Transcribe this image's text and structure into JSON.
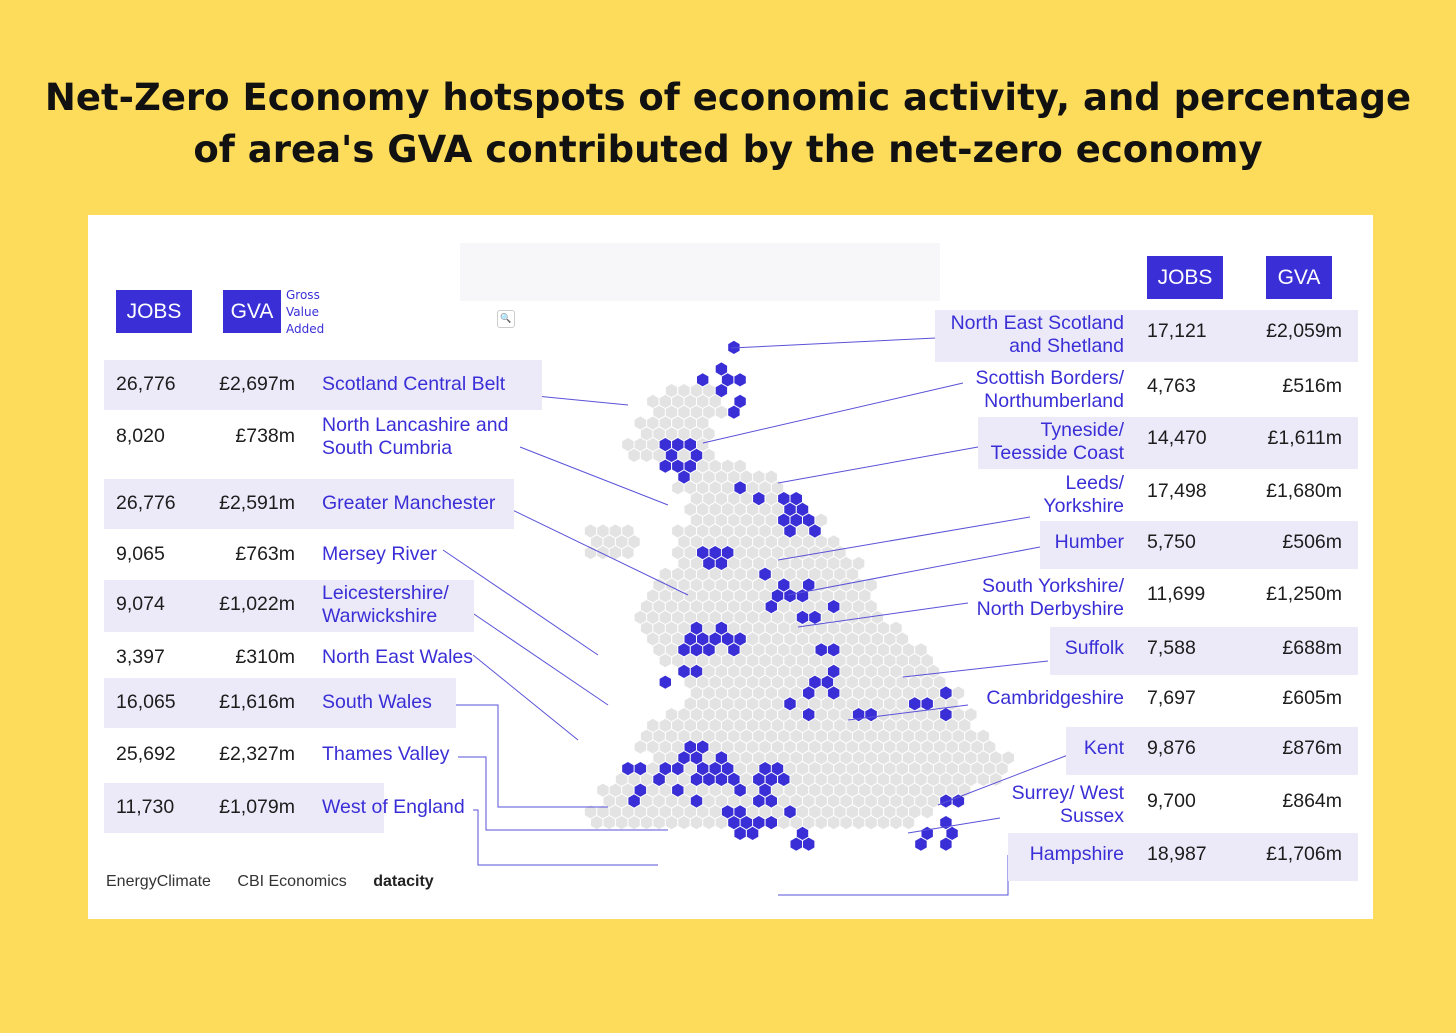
{
  "title": "Net-Zero Economy hotspots of economic activity, and percentage of area's GVA contributed by the net-zero economy",
  "legend": {
    "jobs": "JOBS",
    "gva": "GVA",
    "gva_note": [
      "Gross",
      "Value",
      "Added"
    ]
  },
  "logos": [
    "EnergyClimate",
    "CBI Economics",
    "datacity"
  ],
  "colors": {
    "background": "#FDDC5C",
    "accent": "#3A2FD6",
    "hex_grey": "#E3E3E3",
    "row_shade": "#ECEAF9"
  },
  "chart_data": {
    "type": "table",
    "columns": [
      "JOBS",
      "GVA"
    ],
    "left_regions": [
      {
        "name": "Scotland Central Belt",
        "jobs": "26,776",
        "gva": "£2,697m"
      },
      {
        "name": "North Lancashire and South Cumbria",
        "jobs": "8,020",
        "gva": "£738m"
      },
      {
        "name": "Greater Manchester",
        "jobs": "26,776",
        "gva": "£2,591m"
      },
      {
        "name": "Mersey River",
        "jobs": "9,065",
        "gva": "£763m"
      },
      {
        "name": "Leicestershire/ Warwickshire",
        "jobs": "9,074",
        "gva": "£1,022m"
      },
      {
        "name": "North East Wales",
        "jobs": "3,397",
        "gva": "£310m"
      },
      {
        "name": "South Wales",
        "jobs": "16,065",
        "gva": "£1,616m"
      },
      {
        "name": "Thames Valley",
        "jobs": "25,692",
        "gva": "£2,327m"
      },
      {
        "name": "West of England",
        "jobs": "11,730",
        "gva": "£1,079m"
      }
    ],
    "right_regions": [
      {
        "name": "North East Scotland and Shetland",
        "jobs": "17,121",
        "gva": "£2,059m"
      },
      {
        "name": "Scottish Borders/ Northumberland",
        "jobs": "4,763",
        "gva": "£516m"
      },
      {
        "name": "Tyneside/ Teesside Coast",
        "jobs": "14,470",
        "gva": "£1,611m"
      },
      {
        "name": "Leeds/ Yorkshire",
        "jobs": "17,498",
        "gva": "£1,680m"
      },
      {
        "name": "Humber",
        "jobs": "5,750",
        "gva": "£506m"
      },
      {
        "name": "South Yorkshire/ North Derbyshire",
        "jobs": "11,699",
        "gva": "£1,250m"
      },
      {
        "name": "Suffolk",
        "jobs": "7,588",
        "gva": "£688m"
      },
      {
        "name": "Cambridgeshire",
        "jobs": "7,697",
        "gva": "£605m"
      },
      {
        "name": "Kent",
        "jobs": "9,876",
        "gva": "£876m"
      },
      {
        "name": "Surrey/ West Sussex",
        "jobs": "9,700",
        "gva": "£864m"
      },
      {
        "name": "Hampshire",
        "jobs": "18,987",
        "gva": "£1,706m"
      }
    ]
  }
}
